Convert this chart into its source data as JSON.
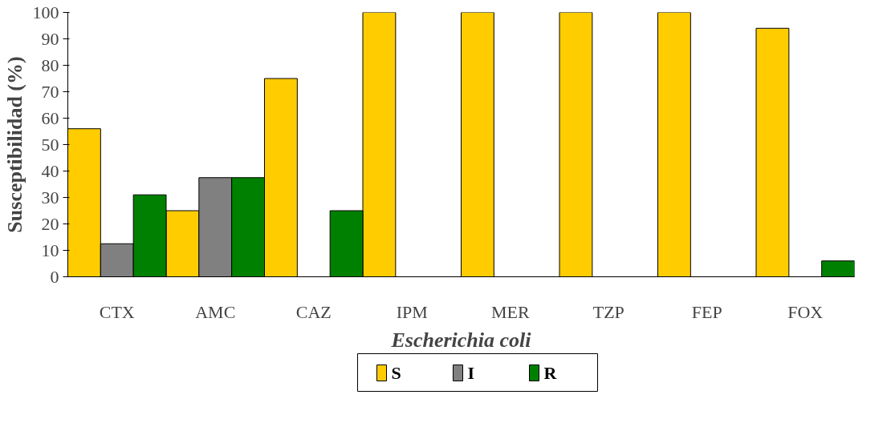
{
  "chart_data": {
    "type": "bar",
    "ylabel": "Susceptibilidad (%)",
    "xlabel": "Escherichia coli",
    "categories": [
      "CTX",
      "AMC",
      "CAZ",
      "IPM",
      "MER",
      "TZP",
      "FEP",
      "FOX"
    ],
    "series": [
      {
        "name": "S",
        "color": "#ffcc00",
        "values": [
          56,
          25,
          75,
          100,
          100,
          100,
          100,
          94
        ]
      },
      {
        "name": "I",
        "color": "#808080",
        "values": [
          12.5,
          37.5,
          null,
          null,
          null,
          null,
          null,
          null
        ]
      },
      {
        "name": "R",
        "color": "#008000",
        "values": [
          31,
          37.5,
          25,
          null,
          null,
          null,
          null,
          6
        ]
      }
    ],
    "ylim": [
      0,
      100
    ],
    "yticks": [
      0,
      10,
      20,
      30,
      40,
      50,
      60,
      70,
      80,
      90,
      100
    ],
    "grid": false,
    "legend": "bottom"
  }
}
